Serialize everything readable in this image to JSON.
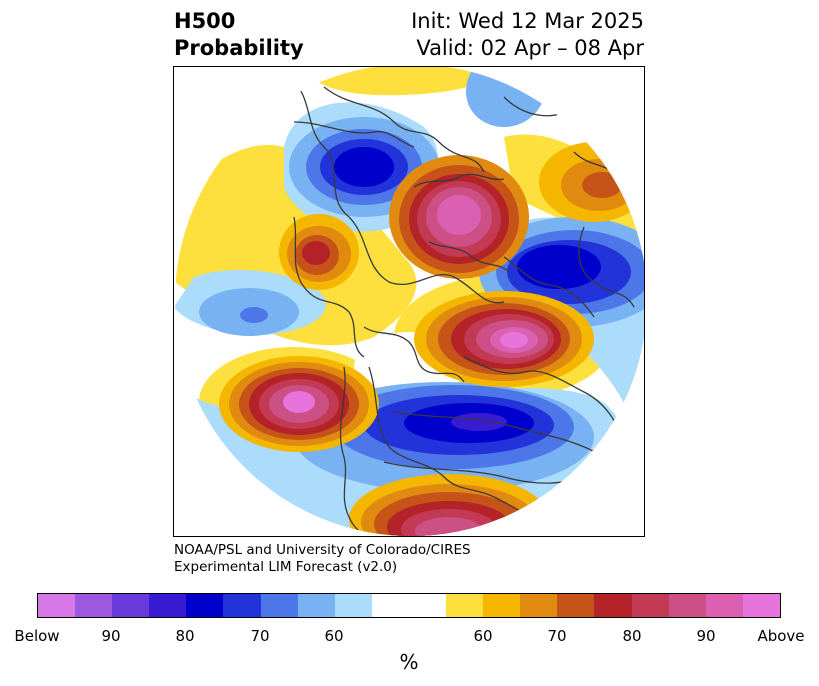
{
  "header": {
    "title_line1": "H500",
    "title_line2": "Probability",
    "init": "Init: Wed 12 Mar 2025",
    "valid": "Valid: 02 Apr – 08 Apr"
  },
  "credit": {
    "line1": "NOAA/PSL and University of Colorado/CIRES",
    "line2": "Experimental LIM Forecast (v2.0)"
  },
  "colorbar": {
    "colors": [
      "#d877e8",
      "#9c59e0",
      "#6a3bdb",
      "#3a1bd4",
      "#0000cc",
      "#2233d9",
      "#4d77e8",
      "#78b2f2",
      "#abdcfc",
      "#ffffff",
      "#ffffff",
      "#fde03e",
      "#f4b600",
      "#e08a10",
      "#c65419",
      "#b32327",
      "#c23a53",
      "#cc4f86",
      "#db60b2",
      "#e674dc"
    ],
    "tick_labels": [
      "Below",
      "90",
      "80",
      "70",
      "60",
      "60",
      "70",
      "80",
      "90",
      "Above"
    ],
    "unit": "%"
  },
  "map": {
    "projection": "north-polar-stereographic",
    "basemap": "coastlines-and-borders",
    "gridlines": false
  }
}
